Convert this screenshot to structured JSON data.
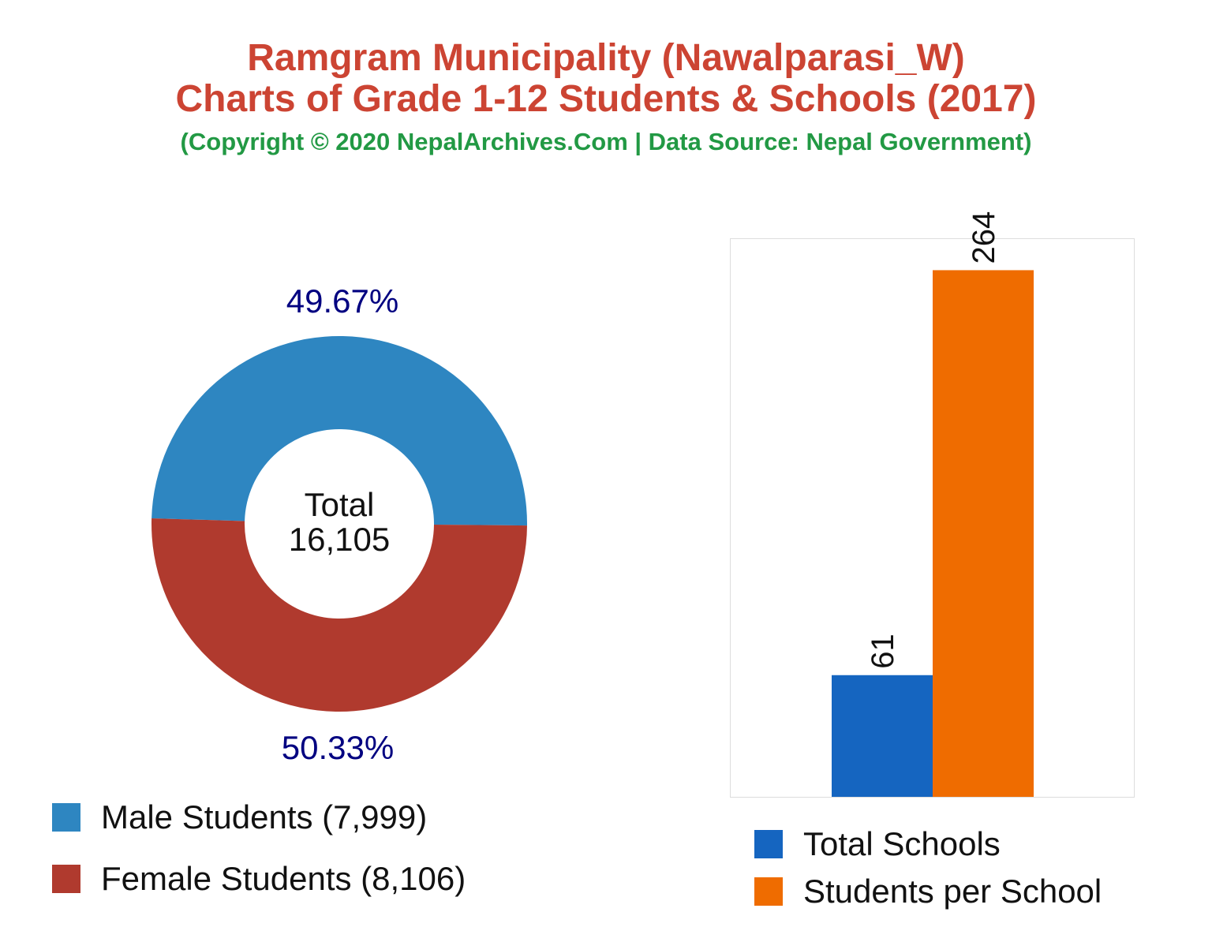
{
  "title": "Ramgram Municipality (Nawalparasi_W)",
  "subtitle": "Charts of Grade 1-12 Students & Schools (2017)",
  "copyright": "(Copyright © 2020 NepalArchives.Com | Data Source: Nepal Government)",
  "chart_data": [
    {
      "type": "pie",
      "donut": true,
      "center_label": "Total",
      "center_value": "16,105",
      "slices": [
        {
          "name": "Male Students (7,999)",
          "value": 7999,
          "percent_label": "49.67%",
          "color": "#2e86c1"
        },
        {
          "name": "Female Students (8,106)",
          "value": 8106,
          "percent_label": "50.33%",
          "color": "#b03a2e"
        }
      ],
      "label_color": "#000080",
      "legend": "bottom-left"
    },
    {
      "type": "bar",
      "categories": [
        "Total Schools",
        "Students per School"
      ],
      "values": [
        61,
        264
      ],
      "value_labels": [
        "61",
        "264"
      ],
      "colors": [
        "#1565c0",
        "#ef6c00"
      ],
      "ylim": [
        0,
        280
      ],
      "grid": false,
      "legend": "bottom"
    }
  ]
}
